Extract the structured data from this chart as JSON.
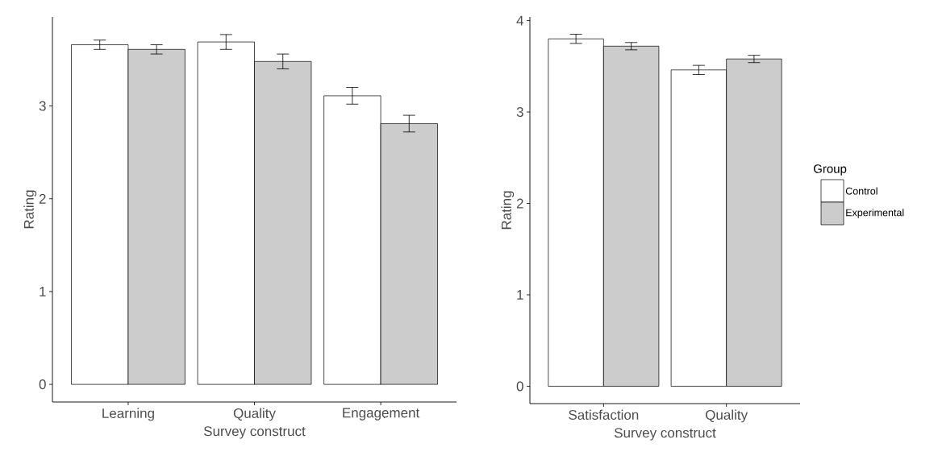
{
  "chart_data": [
    {
      "type": "bar",
      "xlabel": "Survey construct",
      "ylabel": "Rating",
      "categories": [
        "Learning",
        "Quality",
        "Engagement"
      ],
      "series": [
        {
          "color": "#ffffff",
          "values": [
            3.66,
            3.69,
            3.11
          ],
          "errors": [
            0.05,
            0.08,
            0.09
          ]
        },
        {
          "color": "#cccccc",
          "values": [
            3.61,
            3.48,
            2.81
          ],
          "errors": [
            0.05,
            0.08,
            0.09
          ]
        }
      ],
      "ylim": [
        -0.19,
        3.96
      ],
      "yticks": [
        0,
        1,
        2,
        3
      ],
      "legend": false
    },
    {
      "type": "bar",
      "xlabel": "Survey construct",
      "ylabel": "Rating",
      "legend_title": "Group",
      "categories": [
        "Satisfaction",
        "Quality"
      ],
      "series": [
        {
          "name": "Control",
          "color": "#ffffff",
          "values": [
            3.8,
            3.46
          ],
          "errors": [
            0.05,
            0.05
          ]
        },
        {
          "name": "Experimental",
          "color": "#cccccc",
          "values": [
            3.72,
            3.58
          ],
          "errors": [
            0.04,
            0.04
          ]
        }
      ],
      "ylim": [
        -0.19,
        4.04
      ],
      "yticks": [
        0,
        1,
        2,
        3,
        4
      ],
      "legend": "right"
    }
  ]
}
